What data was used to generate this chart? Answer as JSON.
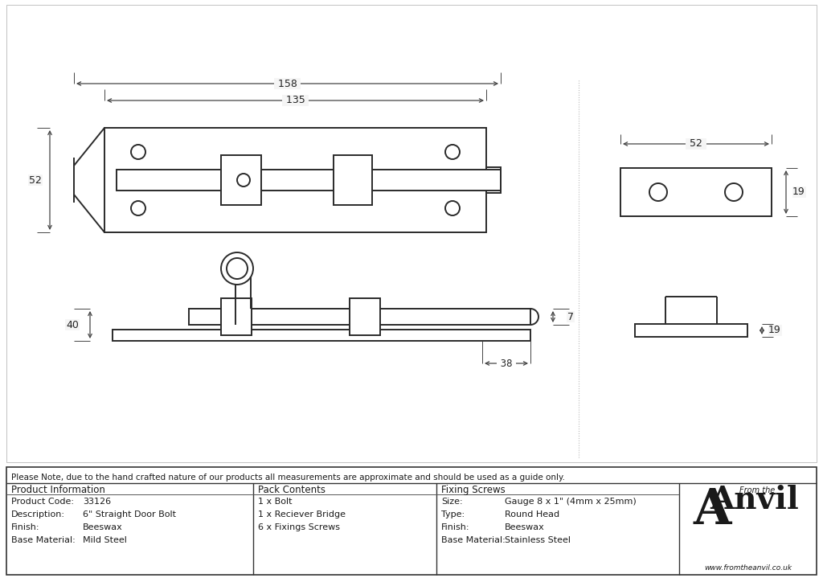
{
  "bg_color": "#e8e8e8",
  "drawing_bg": "#f5f5f5",
  "line_color": "#2a2a2a",
  "note_text": "Please Note, due to the hand crafted nature of our products all measurements are approximate and should be used as a guide only.",
  "table_data": {
    "col1_header": "Product Information",
    "col1_rows": [
      [
        "Product Code:",
        "33126"
      ],
      [
        "Description:",
        "6\" Straight Door Bolt"
      ],
      [
        "Finish:",
        "Beeswax"
      ],
      [
        "Base Material:",
        "Mild Steel"
      ]
    ],
    "col2_header": "Pack Contents",
    "col2_rows": [
      "1 x Bolt",
      "1 x Reciever Bridge",
      "6 x Fixings Screws"
    ],
    "col3_header": "Fixing Screws",
    "col3_rows": [
      [
        "Size:",
        "Gauge 8 x 1\" (4mm x 25mm)"
      ],
      [
        "Type:",
        "Round Head"
      ],
      [
        "Finish:",
        "Beeswax"
      ],
      [
        "Base Material:",
        "Stainless Steel"
      ]
    ]
  }
}
